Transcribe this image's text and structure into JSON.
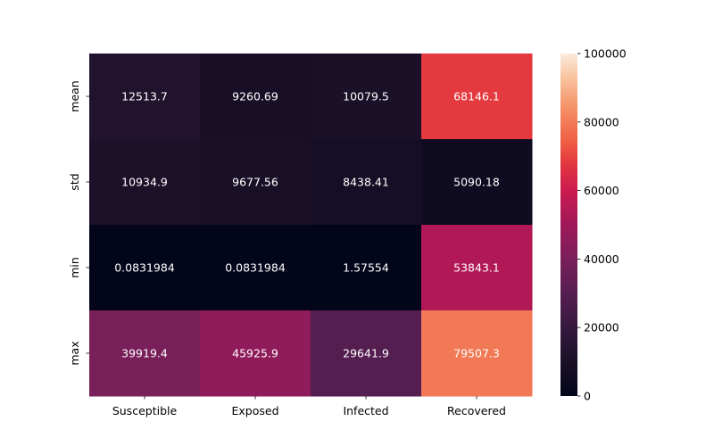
{
  "chart_data": {
    "type": "heatmap",
    "x_categories": [
      "Susceptible",
      "Exposed",
      "Infected",
      "Recovered"
    ],
    "y_categories": [
      "mean",
      "std",
      "min",
      "max"
    ],
    "values": [
      [
        12513.7,
        9260.69,
        10079.5,
        68146.1
      ],
      [
        10934.9,
        9677.56,
        8438.41,
        5090.18
      ],
      [
        0.0831984,
        0.0831984,
        1.57554,
        53843.1
      ],
      [
        39919.4,
        45925.9,
        29641.9,
        79507.3
      ]
    ],
    "cell_labels": [
      [
        "12513.7",
        "9260.69",
        "10079.5",
        "68146.1"
      ],
      [
        "10934.9",
        "9677.56",
        "8438.41",
        "5090.18"
      ],
      [
        "0.0831984",
        "0.0831984",
        "1.57554",
        "53843.1"
      ],
      [
        "39919.4",
        "45925.9",
        "29641.9",
        "79507.3"
      ]
    ],
    "color_range": [
      0,
      100000
    ],
    "colormap": "rocket",
    "colorbar": {
      "ticks": [
        0,
        20000,
        40000,
        60000,
        80000,
        100000
      ],
      "tick_labels": [
        "0",
        "20000",
        "40000",
        "60000",
        "80000",
        "100000"
      ],
      "placement": "right"
    },
    "title": "",
    "xlabel": "",
    "ylabel": ""
  }
}
